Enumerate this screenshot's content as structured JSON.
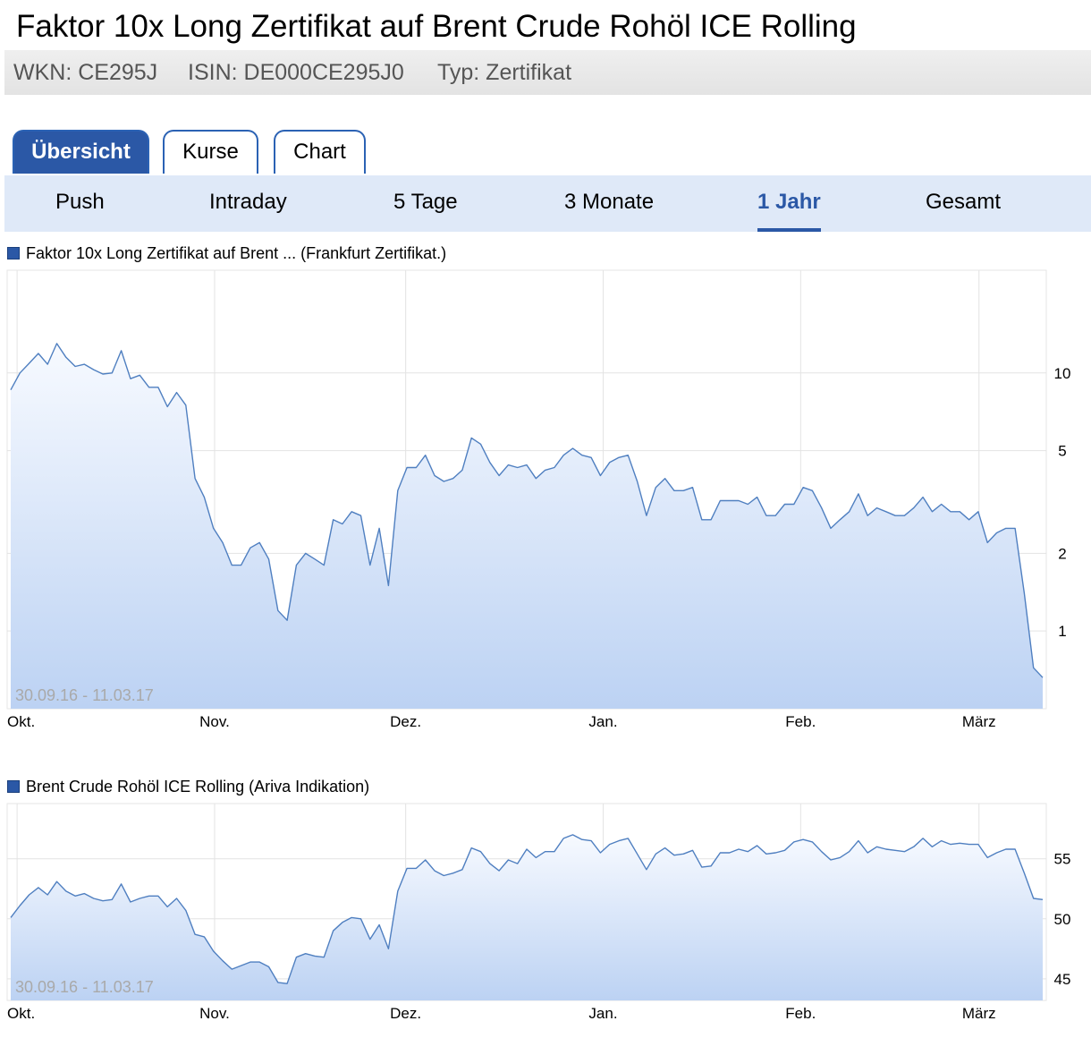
{
  "header": {
    "title": "Faktor 10x Long Zertifikat auf Brent Crude Rohöl ICE Rolling",
    "wkn": "WKN: CE295J",
    "isin": "ISIN: DE000CE295J0",
    "typ": "Typ: Zertifikat"
  },
  "tabs": [
    {
      "label": "Übersicht",
      "active": true
    },
    {
      "label": "Kurse",
      "active": false
    },
    {
      "label": "Chart",
      "active": false
    }
  ],
  "ranges": [
    {
      "label": "Push",
      "active": false
    },
    {
      "label": "Intraday",
      "active": false
    },
    {
      "label": "5 Tage",
      "active": false
    },
    {
      "label": "3 Monate",
      "active": false
    },
    {
      "label": "1 Jahr",
      "active": true
    },
    {
      "label": "Gesamt",
      "active": false
    }
  ],
  "colors": {
    "accent": "#2b58a6",
    "line": "#4f7fc0",
    "fill_top": "#f7faff",
    "fill_bottom": "#bcd2f3",
    "grid": "#e3e3e3"
  },
  "chart_data": [
    {
      "type": "area",
      "legend": "Faktor 10x Long Zertifikat auf Brent ... (Frankfurt Zertifikat.)",
      "date_range": "30.09.16 - 11.03.17",
      "x_start": "2016-09-30",
      "x_end": "2017-03-11",
      "x_ticks": [
        "Okt.",
        "Nov.",
        "Dez.",
        "Jan.",
        "Feb.",
        "März"
      ],
      "scale": "log",
      "ylim": [
        0.5,
        25
      ],
      "y_ticks": [
        1,
        2,
        5,
        10
      ],
      "grid": true,
      "values": [
        8.6,
        10.0,
        10.9,
        11.9,
        10.8,
        13.0,
        11.5,
        10.6,
        10.8,
        10.3,
        9.9,
        10.0,
        12.2,
        9.5,
        9.8,
        8.8,
        8.8,
        7.4,
        8.4,
        7.5,
        3.9,
        3.3,
        2.5,
        2.2,
        1.8,
        1.8,
        2.1,
        2.2,
        1.9,
        1.2,
        1.1,
        1.8,
        2.0,
        1.9,
        1.8,
        2.7,
        2.6,
        2.9,
        2.8,
        1.8,
        2.5,
        1.5,
        3.5,
        4.3,
        4.3,
        4.8,
        4.0,
        3.8,
        3.9,
        4.2,
        5.6,
        5.3,
        4.5,
        4.0,
        4.4,
        4.3,
        4.4,
        3.9,
        4.2,
        4.3,
        4.8,
        5.1,
        4.8,
        4.7,
        4.0,
        4.5,
        4.7,
        4.8,
        3.8,
        2.8,
        3.6,
        3.9,
        3.5,
        3.5,
        3.6,
        2.7,
        2.7,
        3.2,
        3.2,
        3.2,
        3.1,
        3.3,
        2.8,
        2.8,
        3.1,
        3.1,
        3.6,
        3.5,
        3.0,
        2.5,
        2.7,
        2.9,
        3.4,
        2.8,
        3.0,
        2.9,
        2.8,
        2.8,
        3.0,
        3.3,
        2.9,
        3.1,
        2.9,
        2.9,
        2.7,
        2.9,
        2.2,
        2.4,
        2.5,
        2.5,
        1.4,
        0.72,
        0.66
      ]
    },
    {
      "type": "area",
      "legend": "Brent Crude Rohöl ICE Rolling (Ariva Indikation)",
      "date_range": "30.09.16 - 11.03.17",
      "x_start": "2016-09-30",
      "x_end": "2017-03-11",
      "x_ticks": [
        "Okt.",
        "Nov.",
        "Dez.",
        "Jan.",
        "Feb.",
        "März"
      ],
      "scale": "linear",
      "ylim": [
        43.2,
        59.6
      ],
      "y_ticks": [
        45,
        50,
        55
      ],
      "grid": true,
      "values": [
        50.1,
        51.1,
        52.0,
        52.6,
        52.0,
        53.1,
        52.3,
        51.9,
        52.1,
        51.7,
        51.5,
        51.6,
        52.9,
        51.4,
        51.7,
        51.9,
        51.9,
        51.0,
        51.7,
        50.7,
        48.7,
        48.5,
        47.3,
        46.5,
        45.8,
        46.1,
        46.4,
        46.4,
        46.0,
        44.7,
        44.6,
        46.8,
        47.1,
        46.9,
        46.8,
        49.0,
        49.7,
        50.1,
        50.0,
        48.3,
        49.5,
        47.5,
        52.3,
        54.2,
        54.2,
        54.9,
        54.0,
        53.6,
        53.8,
        54.1,
        55.9,
        55.6,
        54.6,
        54.0,
        54.9,
        54.6,
        55.8,
        55.1,
        55.6,
        55.6,
        56.7,
        57.0,
        56.6,
        56.5,
        55.5,
        56.2,
        56.5,
        56.7,
        55.4,
        54.1,
        55.4,
        55.9,
        55.3,
        55.4,
        55.7,
        54.3,
        54.4,
        55.5,
        55.5,
        55.8,
        55.6,
        56.1,
        55.4,
        55.5,
        55.7,
        56.4,
        56.6,
        56.4,
        55.6,
        54.9,
        55.1,
        55.6,
        56.5,
        55.5,
        56.0,
        55.8,
        55.7,
        55.6,
        56.0,
        56.7,
        56.0,
        56.5,
        56.2,
        56.3,
        56.2,
        56.2,
        55.1,
        55.5,
        55.8,
        55.8,
        53.8,
        51.7,
        51.6
      ]
    }
  ]
}
